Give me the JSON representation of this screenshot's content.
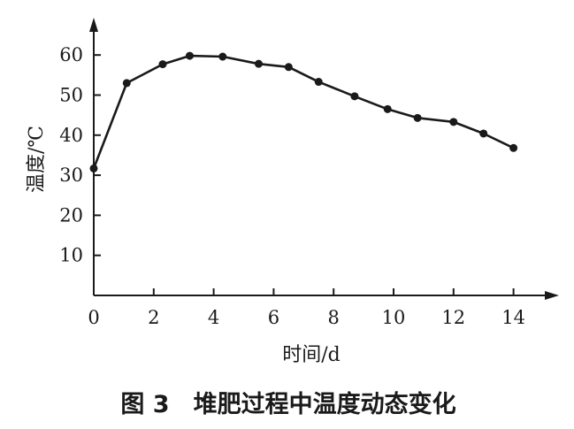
{
  "chart_data": {
    "type": "line",
    "title": "",
    "caption": "图 3　堆肥过程中温度动态变化",
    "xlabel": "时间/d",
    "ylabel": "温度/℃",
    "xlim": [
      0,
      15
    ],
    "ylim": [
      0,
      66
    ],
    "x_ticks": [
      0,
      2,
      4,
      6,
      8,
      10,
      12,
      14
    ],
    "y_ticks": [
      10,
      20,
      30,
      40,
      50,
      60
    ],
    "grid": false,
    "legend": "none",
    "series": [
      {
        "x": [
          0,
          1.1,
          2.3,
          3.2,
          4.3,
          5.5,
          6.5,
          7.5,
          8.7,
          9.8,
          10.8,
          12.0,
          13.0,
          14.0
        ],
        "values": [
          31.7,
          53.0,
          57.7,
          59.8,
          59.6,
          57.8,
          57.0,
          53.3,
          49.7,
          46.5,
          44.3,
          43.3,
          40.4,
          36.8
        ]
      }
    ]
  }
}
